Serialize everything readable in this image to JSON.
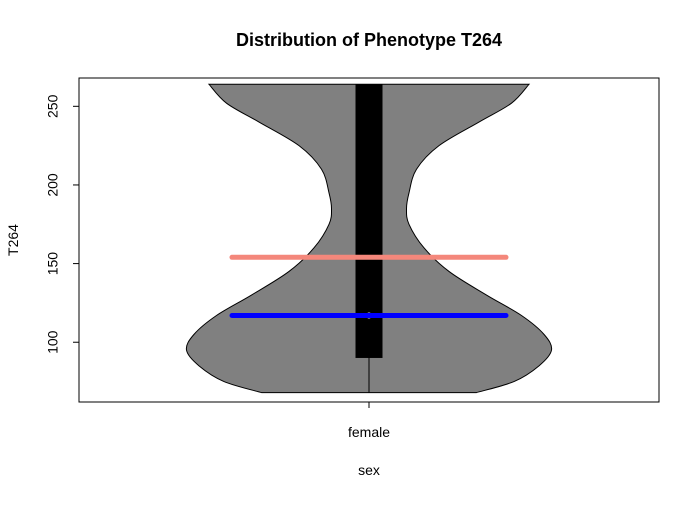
{
  "chart_data": {
    "type": "violin",
    "title": "Distribution of Phenotype T264",
    "xlabel": "sex",
    "ylabel": "T264",
    "categories": [
      "female"
    ],
    "ylim": [
      62,
      268
    ],
    "yticks": [
      100,
      150,
      200,
      250
    ],
    "violin": {
      "category": "female",
      "fill_color": "#808080",
      "min": 68,
      "max": 264,
      "q1": 90,
      "q3": 264,
      "median": 117,
      "mean": 154,
      "box_color": "#000000",
      "whisker_min": 68,
      "whisker_max": 264,
      "density_profile": [
        {
          "y": 68,
          "halfwidth": 0.43
        },
        {
          "y": 75,
          "halfwidth": 0.58
        },
        {
          "y": 85,
          "halfwidth": 0.68
        },
        {
          "y": 95,
          "halfwidth": 0.73
        },
        {
          "y": 105,
          "halfwidth": 0.7
        },
        {
          "y": 117,
          "halfwidth": 0.61
        },
        {
          "y": 130,
          "halfwidth": 0.47
        },
        {
          "y": 145,
          "halfwidth": 0.32
        },
        {
          "y": 160,
          "halfwidth": 0.22
        },
        {
          "y": 175,
          "halfwidth": 0.16
        },
        {
          "y": 185,
          "halfwidth": 0.15
        },
        {
          "y": 195,
          "halfwidth": 0.16
        },
        {
          "y": 210,
          "halfwidth": 0.19
        },
        {
          "y": 225,
          "halfwidth": 0.28
        },
        {
          "y": 240,
          "halfwidth": 0.44
        },
        {
          "y": 252,
          "halfwidth": 0.57
        },
        {
          "y": 264,
          "halfwidth": 0.64
        }
      ]
    },
    "reference_lines": [
      {
        "name": "mean",
        "y": 154,
        "color": "#F4877B"
      },
      {
        "name": "median",
        "y": 117,
        "color": "#0000FF"
      }
    ],
    "grid": false,
    "legend": "none"
  }
}
